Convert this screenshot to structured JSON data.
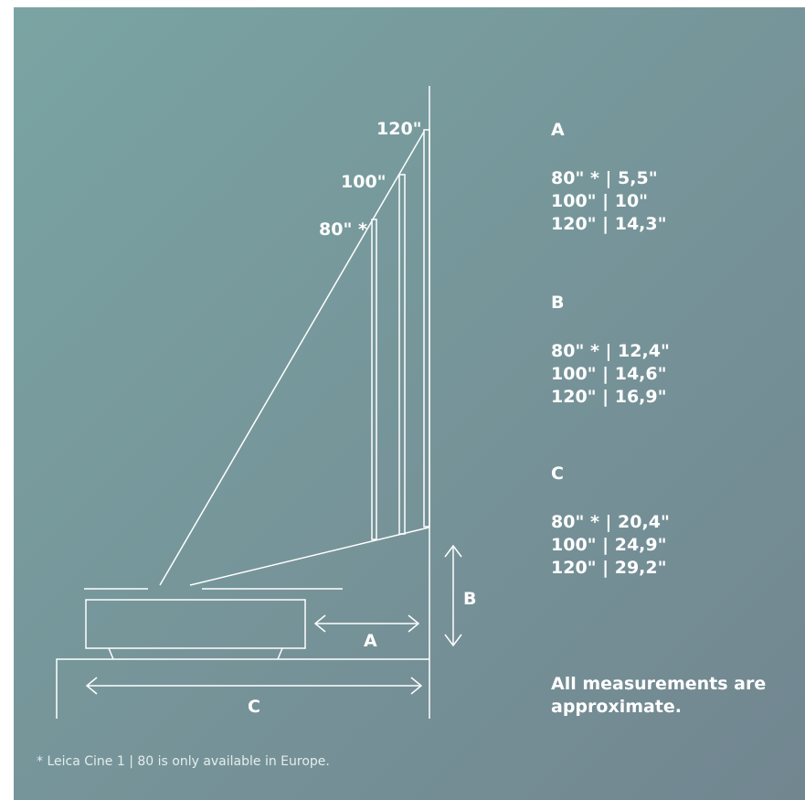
{
  "colors": {
    "bg_start": "#7aa4a3",
    "bg_end": "#728690",
    "line": "#ffffff"
  },
  "diagram": {
    "screen_sizes": [
      "120\"",
      "100\"",
      "80\" *"
    ],
    "dimension_labels": {
      "a": "A",
      "b": "B",
      "c": "C"
    }
  },
  "specs": [
    {
      "heading": "A",
      "rows": [
        "80\" * | 5,5\"",
        "100\" | 10\"",
        "120\" | 14,3\""
      ]
    },
    {
      "heading": "B",
      "rows": [
        "80\" * | 12,4\"",
        "100\" | 14,6\"",
        "120\" | 16,9\""
      ]
    },
    {
      "heading": "C",
      "rows": [
        "80\" * | 20,4\"",
        "100\" | 24,9\"",
        "120\" | 29,2\""
      ]
    }
  ],
  "note": "All measurements are approximate.",
  "footnote": "* Leica Cine 1 | 80 is only available in Europe."
}
